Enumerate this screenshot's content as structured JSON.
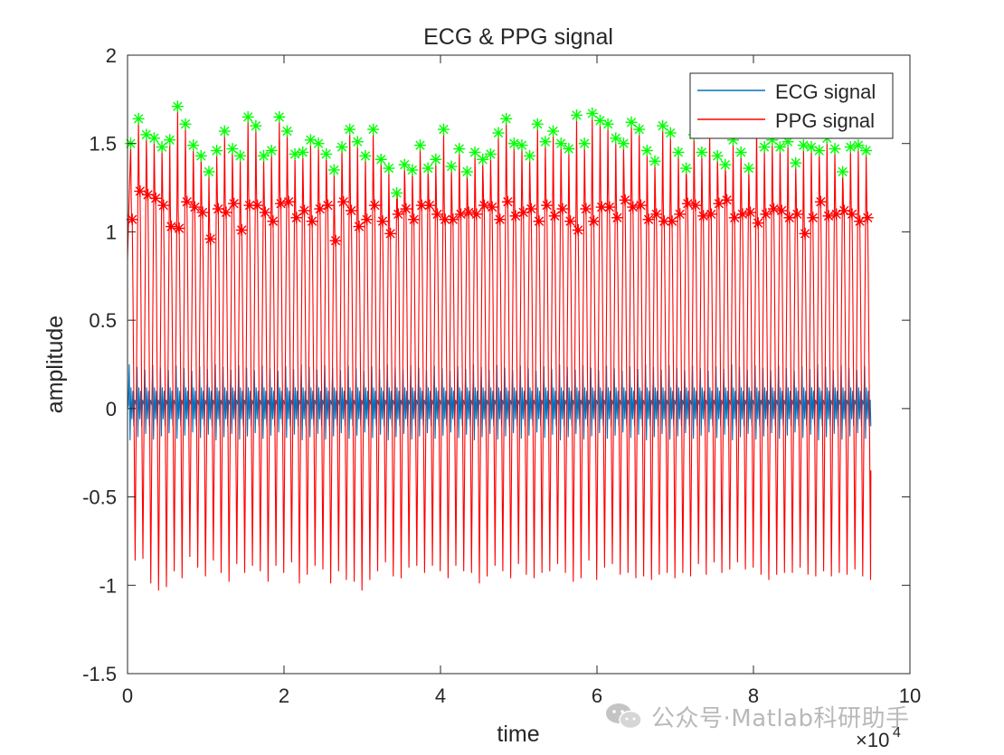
{
  "chart_data": {
    "type": "line",
    "title": "ECG & PPG signal",
    "xlabel": "time",
    "ylabel": "amplitude",
    "xlim": [
      0,
      100000
    ],
    "ylim": [
      -1.5,
      2
    ],
    "x_exponent_label": "×10",
    "x_exponent_power": "4",
    "xticks": [
      0,
      20000,
      40000,
      60000,
      80000,
      100000
    ],
    "xtick_labels": [
      "0",
      "2",
      "4",
      "6",
      "8",
      "10"
    ],
    "yticks": [
      -1.5,
      -1,
      -0.5,
      0,
      0.5,
      1,
      1.5,
      2
    ],
    "ytick_labels": [
      "-1.5",
      "-1",
      "-0.5",
      "0",
      "0.5",
      "1",
      "1.5",
      "2"
    ],
    "grid": false,
    "legend_position": "top-right",
    "colors": {
      "ecg": "#0072bd",
      "ppg": "#ff0000",
      "peak_marker": "#00ff00",
      "notch_marker": "#ff0000",
      "axis": "#262626"
    },
    "series": [
      {
        "name": "ECG signal",
        "kind": "line",
        "x_start": 0,
        "x_end": 95000,
        "beat_count": 95,
        "amplitude_range": [
          -0.18,
          0.25
        ]
      },
      {
        "name": "PPG signal",
        "kind": "line",
        "x_start": 0,
        "x_end": 95000,
        "peak_times": [
          500,
          1500,
          2500,
          3500,
          4500,
          5500,
          6500,
          7500,
          8500,
          9500,
          10500,
          11500,
          12500,
          13500,
          14500,
          15500,
          16500,
          17500,
          18500,
          19500,
          20500,
          21500,
          22500,
          23500,
          24500,
          25500,
          26500,
          27500,
          28500,
          29500,
          30500,
          31500,
          32500,
          33500,
          34500,
          35500,
          36500,
          37500,
          38500,
          39500,
          40500,
          41500,
          42500,
          43500,
          44500,
          45500,
          46500,
          47500,
          48500,
          49500,
          50500,
          51500,
          52500,
          53500,
          54500,
          55500,
          56500,
          57500,
          58500,
          59500,
          60500,
          61500,
          62500,
          63500,
          64500,
          65500,
          66500,
          67500,
          68500,
          69500,
          70500,
          71500,
          72500,
          73500,
          74500,
          75500,
          76500,
          77500,
          78500,
          79500,
          80500,
          81500,
          82500,
          83500,
          84500,
          85500,
          86500,
          87500,
          88500,
          89500,
          90500,
          91500,
          92500,
          93500,
          94500
        ],
        "peak_values": [
          1.5,
          1.64,
          1.55,
          1.53,
          1.48,
          1.52,
          1.71,
          1.61,
          1.49,
          1.43,
          1.34,
          1.46,
          1.57,
          1.47,
          1.43,
          1.65,
          1.6,
          1.43,
          1.46,
          1.65,
          1.57,
          1.44,
          1.45,
          1.52,
          1.5,
          1.44,
          1.35,
          1.48,
          1.58,
          1.51,
          1.43,
          1.58,
          1.41,
          1.36,
          1.22,
          1.38,
          1.35,
          1.49,
          1.36,
          1.41,
          1.58,
          1.37,
          1.47,
          1.34,
          1.45,
          1.41,
          1.44,
          1.56,
          1.64,
          1.5,
          1.49,
          1.43,
          1.61,
          1.51,
          1.57,
          1.5,
          1.47,
          1.66,
          1.5,
          1.67,
          1.63,
          1.61,
          1.53,
          1.5,
          1.62,
          1.58,
          1.46,
          1.4,
          1.6,
          1.56,
          1.45,
          1.36,
          1.55,
          1.45,
          1.58,
          1.43,
          1.38,
          1.52,
          1.45,
          1.36,
          1.61,
          1.48,
          1.52,
          1.48,
          1.51,
          1.39,
          1.49,
          1.48,
          1.46,
          1.53,
          1.47,
          1.34,
          1.48,
          1.49,
          1.46
        ],
        "notch_values": [
          1.07,
          1.23,
          1.21,
          1.19,
          1.15,
          1.03,
          1.02,
          1.17,
          1.14,
          1.11,
          0.96,
          1.13,
          1.11,
          1.16,
          1.01,
          1.15,
          1.15,
          1.11,
          1.06,
          1.16,
          1.17,
          1.08,
          1.12,
          1.06,
          1.13,
          1.15,
          0.95,
          1.17,
          1.12,
          1.03,
          1.07,
          1.15,
          1.06,
          0.99,
          1.1,
          1.13,
          1.07,
          1.15,
          1.15,
          1.1,
          1.07,
          1.07,
          1.1,
          1.11,
          1.1,
          1.15,
          1.14,
          1.07,
          1.17,
          1.09,
          1.11,
          1.13,
          1.06,
          1.15,
          1.09,
          1.13,
          1.06,
          1.01,
          1.13,
          1.06,
          1.14,
          1.14,
          1.08,
          1.18,
          1.14,
          1.15,
          1.07,
          1.1,
          1.06,
          1.06,
          1.1,
          1.16,
          1.15,
          1.09,
          1.1,
          1.16,
          1.18,
          1.08,
          1.1,
          1.11,
          1.05,
          1.1,
          1.13,
          1.12,
          1.08,
          1.1,
          0.99,
          1.08,
          1.17,
          1.09,
          1.1,
          1.12,
          1.1,
          1.06,
          1.08
        ],
        "trough_values": [
          -0.86,
          -0.85,
          -0.99,
          -1.03,
          -1.01,
          -0.92,
          -0.96,
          -0.84,
          -0.9,
          -0.95,
          -0.86,
          -0.93,
          -0.98,
          -0.88,
          -0.93,
          -0.89,
          -0.92,
          -0.98,
          -0.89,
          -0.93,
          -0.87,
          -0.99,
          -0.94,
          -0.89,
          -0.91,
          -0.99,
          -0.92,
          -0.97,
          -0.98,
          -1.03,
          -0.97,
          -0.92,
          -0.87,
          -0.95,
          -0.96,
          -0.9,
          -0.89,
          -0.93,
          -0.89,
          -0.92,
          -0.96,
          -0.89,
          -0.92,
          -0.93,
          -0.99,
          -0.95,
          -0.89,
          -0.92,
          -0.96,
          -0.88,
          -0.94,
          -0.96,
          -0.93,
          -0.92,
          -0.88,
          -0.93,
          -0.98,
          -0.96,
          -0.86,
          -0.97,
          -0.9,
          -0.88,
          -0.94,
          -0.93,
          -0.96,
          -0.95,
          -0.97,
          -0.94,
          -0.93,
          -0.96,
          -0.93,
          -0.95,
          -0.88,
          -0.94,
          -0.87,
          -0.93,
          -0.91,
          -0.87,
          -0.91,
          -0.9,
          -0.94,
          -0.97,
          -0.94,
          -0.93,
          -0.93,
          -0.9,
          -0.94,
          -0.95,
          -0.92,
          -0.95,
          -0.93,
          -0.94,
          -0.91,
          -0.95,
          -0.97
        ]
      }
    ],
    "markers": [
      {
        "name": "PPG peaks",
        "symbol": "*",
        "color": "#00ff00",
        "source": "peak_values"
      },
      {
        "name": "PPG dicrotic notches",
        "symbol": "*",
        "color": "#ff0000",
        "source": "notch_values"
      }
    ]
  },
  "watermark": {
    "text": "公众号·Matlab科研助手",
    "icon": "wechat-icon"
  }
}
